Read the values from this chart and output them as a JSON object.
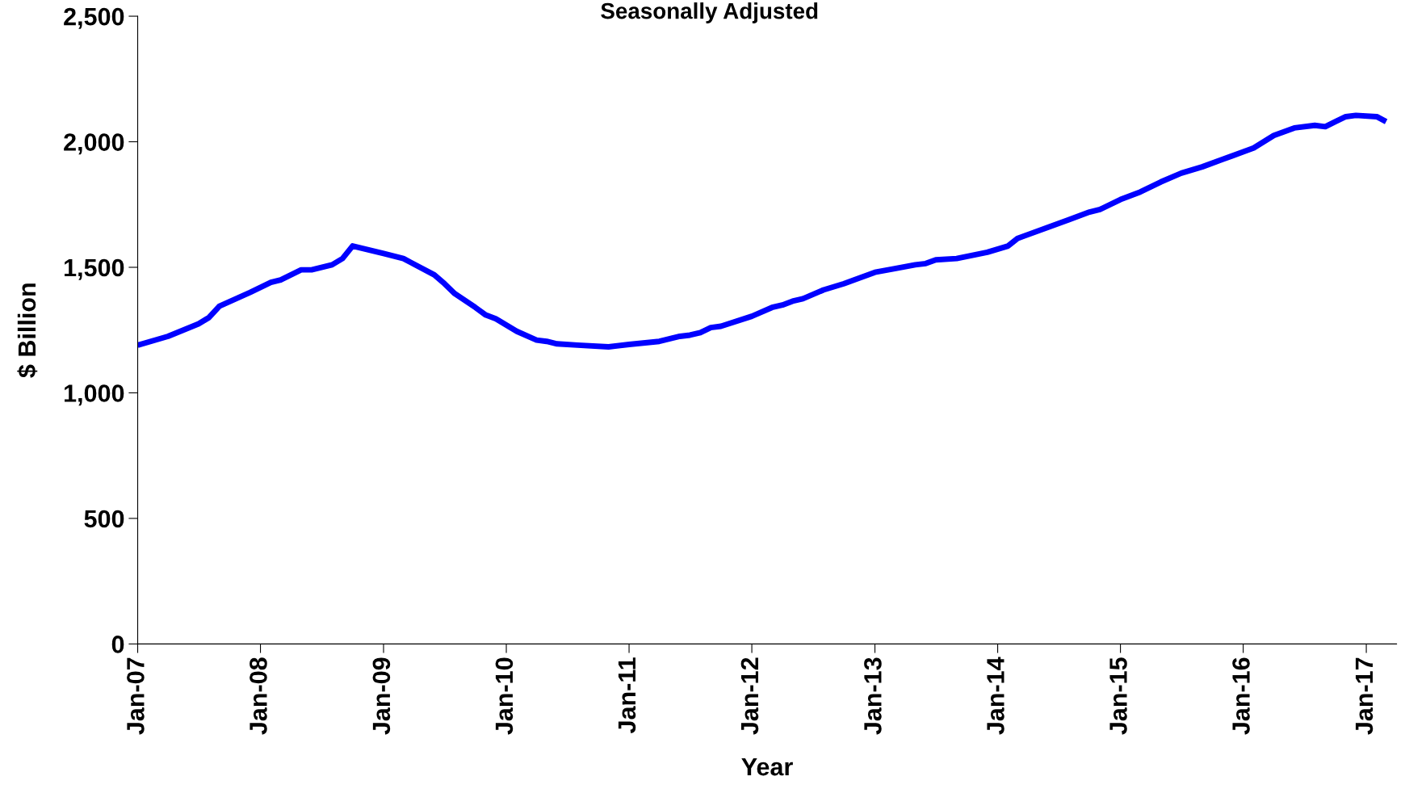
{
  "chart_data": {
    "type": "line",
    "title": "Seasonally Adjusted",
    "xlabel": "Year",
    "ylabel": "$ Billion",
    "x": [
      "2007-01",
      "2007-04",
      "2007-07",
      "2007-08",
      "2007-09",
      "2007-12",
      "2008-02",
      "2008-03",
      "2008-05",
      "2008-06",
      "2008-08",
      "2008-09",
      "2008-10",
      "2009-01",
      "2009-03",
      "2009-06",
      "2009-07",
      "2009-08",
      "2009-10",
      "2009-11",
      "2009-12",
      "2010-02",
      "2010-04",
      "2010-05",
      "2010-06",
      "2010-08",
      "2010-11",
      "2011-01",
      "2011-04",
      "2011-06",
      "2011-07",
      "2011-08",
      "2011-09",
      "2011-10",
      "2012-01",
      "2012-03",
      "2012-04",
      "2012-05",
      "2012-06",
      "2012-08",
      "2012-10",
      "2012-11",
      "2013-01",
      "2013-03",
      "2013-05",
      "2013-06",
      "2013-07",
      "2013-09",
      "2013-12",
      "2014-02",
      "2014-03",
      "2014-06",
      "2014-08",
      "2014-10",
      "2014-11",
      "2015-01",
      "2015-03",
      "2015-05",
      "2015-07",
      "2015-09",
      "2015-11",
      "2016-01",
      "2016-02",
      "2016-04",
      "2016-06",
      "2016-08",
      "2016-09",
      "2016-10",
      "2016-11",
      "2016-12",
      "2017-02",
      "2017-03"
    ],
    "series": [
      {
        "color": "#0000ff",
        "values": [
          1190,
          1225,
          1275,
          1300,
          1345,
          1400,
          1440,
          1450,
          1490,
          1490,
          1510,
          1535,
          1585,
          1555,
          1535,
          1470,
          1435,
          1395,
          1340,
          1310,
          1295,
          1245,
          1210,
          1205,
          1195,
          1190,
          1183,
          1193,
          1205,
          1225,
          1230,
          1240,
          1260,
          1265,
          1305,
          1340,
          1350,
          1365,
          1375,
          1410,
          1435,
          1450,
          1480,
          1495,
          1510,
          1515,
          1530,
          1535,
          1560,
          1585,
          1615,
          1660,
          1690,
          1720,
          1730,
          1770,
          1800,
          1840,
          1875,
          1900,
          1930,
          1960,
          1975,
          2025,
          2055,
          2065,
          2060,
          2080,
          2100,
          2105,
          2100,
          2080
        ]
      }
    ],
    "xlim": [
      "2007-01",
      "2017-04"
    ],
    "xticks": [
      {
        "value": "2007-01",
        "label": "Jan-07"
      },
      {
        "value": "2008-01",
        "label": "Jan-08"
      },
      {
        "value": "2009-01",
        "label": "Jan-09"
      },
      {
        "value": "2010-01",
        "label": "Jan-10"
      },
      {
        "value": "2011-01",
        "label": "Jan-11"
      },
      {
        "value": "2012-01",
        "label": "Jan-12"
      },
      {
        "value": "2013-01",
        "label": "Jan-13"
      },
      {
        "value": "2014-01",
        "label": "Jan-14"
      },
      {
        "value": "2015-01",
        "label": "Jan-15"
      },
      {
        "value": "2016-01",
        "label": "Jan-16"
      },
      {
        "value": "2017-01",
        "label": "Jan-17"
      }
    ],
    "ylim": [
      0,
      2500
    ],
    "yticks": [
      {
        "value": 0,
        "label": "0"
      },
      {
        "value": 500,
        "label": "500"
      },
      {
        "value": 1000,
        "label": "1,000"
      },
      {
        "value": 1500,
        "label": "1,500"
      },
      {
        "value": 2000,
        "label": "2,000"
      },
      {
        "value": 2500,
        "label": "2,500"
      }
    ],
    "grid": false,
    "legend": false,
    "marker": "none",
    "line_style": "solid"
  }
}
